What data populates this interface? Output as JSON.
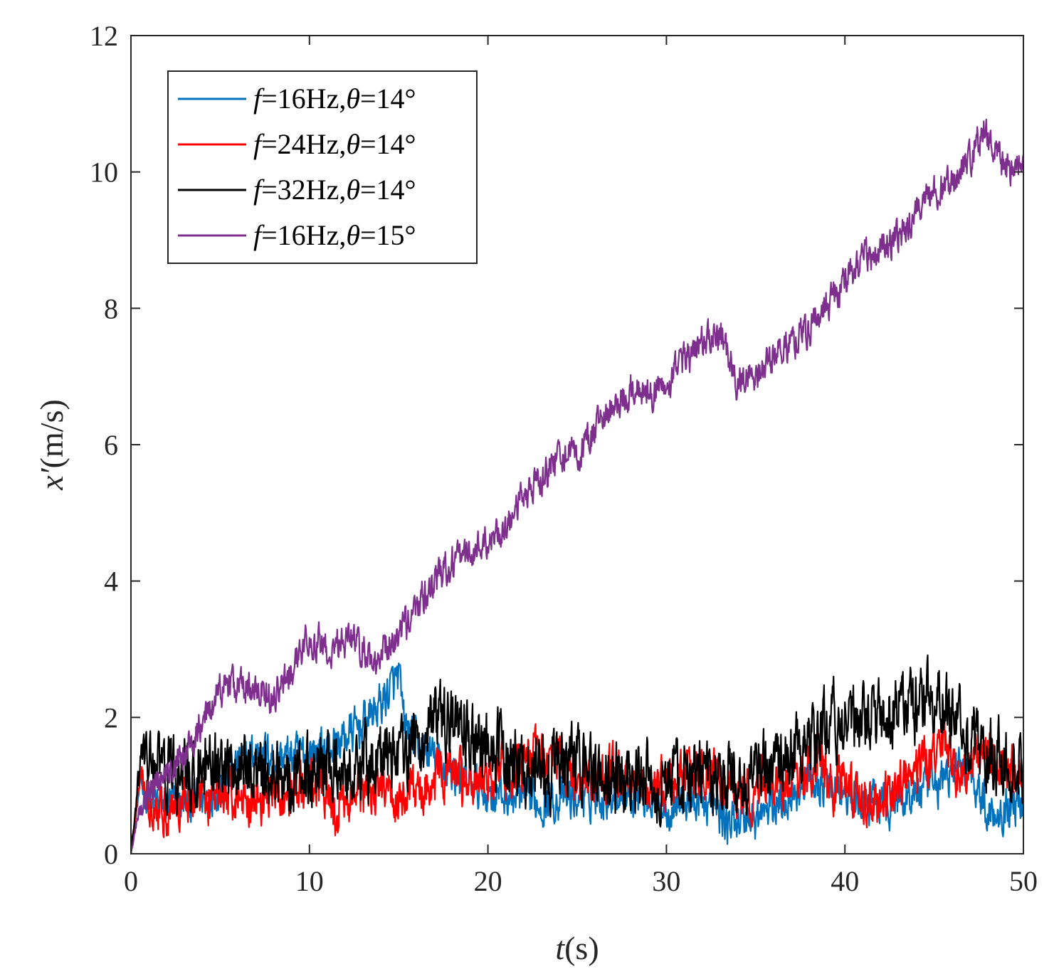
{
  "chart_data": {
    "type": "line",
    "xlabel": {
      "var": "t",
      "unit": "(s)"
    },
    "ylabel": {
      "var": "x′",
      "unit": "(m/s)"
    },
    "xlim": [
      0,
      50
    ],
    "ylim": [
      0,
      12
    ],
    "xticks": [
      "0",
      "10",
      "20",
      "30",
      "40",
      "50"
    ],
    "yticks": [
      "0",
      "2",
      "4",
      "6",
      "8",
      "10",
      "12"
    ],
    "grid": false,
    "legend_position": "top-left",
    "series": [
      {
        "name": "f=16Hz,θ=14°",
        "legend": {
          "f": "f",
          "freq": "=16Hz,",
          "theta": "θ",
          "angle": "=14°"
        },
        "color": "#0072BD",
        "noise": 0.33,
        "x": [
          0,
          0.5,
          1,
          2,
          3,
          4,
          5,
          6,
          7,
          8,
          9,
          10,
          11,
          12,
          13,
          14,
          14.5,
          15,
          15.3,
          16,
          17,
          18,
          19,
          20,
          21,
          22,
          23,
          24,
          25,
          26,
          27,
          28,
          29,
          30,
          31,
          32,
          33,
          33.5,
          34,
          35,
          36,
          37,
          38,
          39,
          40,
          41,
          42,
          43,
          44,
          45,
          46,
          47,
          48,
          49,
          50
        ],
        "y": [
          0,
          1.0,
          0.8,
          0.7,
          0.75,
          0.8,
          1.0,
          1.3,
          1.5,
          1.45,
          1.4,
          1.5,
          1.55,
          1.7,
          1.9,
          2.2,
          2.4,
          2.6,
          1.9,
          1.6,
          1.4,
          1.2,
          1.0,
          0.9,
          0.85,
          0.8,
          0.75,
          0.8,
          0.8,
          0.85,
          0.9,
          0.9,
          0.85,
          0.7,
          0.75,
          0.8,
          0.6,
          0.4,
          0.55,
          0.5,
          0.7,
          0.9,
          1.1,
          1.0,
          0.85,
          0.75,
          0.7,
          0.8,
          0.9,
          1.0,
          1.2,
          1.3,
          0.6,
          0.7,
          0.8
        ]
      },
      {
        "name": "f=24Hz,θ=14°",
        "legend": {
          "f": "f",
          "freq": "=24Hz,",
          "theta": "θ",
          "angle": "=14°"
        },
        "color": "#FF0000",
        "noise": 0.38,
        "x": [
          0,
          0.5,
          1,
          2,
          3,
          4,
          5,
          6,
          7,
          8,
          9,
          10,
          11,
          11.5,
          12,
          13,
          14,
          15,
          16,
          17,
          18,
          19,
          20,
          21,
          22,
          23,
          24,
          25,
          26,
          27,
          28,
          29,
          30,
          31,
          32,
          33,
          34,
          35,
          36,
          37,
          38,
          38.5,
          39,
          40,
          41,
          42,
          43,
          44,
          45,
          45.5,
          46,
          47,
          48,
          49,
          50
        ],
        "y": [
          0,
          1.1,
          0.8,
          0.7,
          0.8,
          0.85,
          0.9,
          0.85,
          0.8,
          0.85,
          0.9,
          0.95,
          0.85,
          0.5,
          0.8,
          0.85,
          0.9,
          0.8,
          0.9,
          1.1,
          1.2,
          1.0,
          1.1,
          1.2,
          1.3,
          1.5,
          1.4,
          1.0,
          1.1,
          1.2,
          1.1,
          1.0,
          1.0,
          1.1,
          1.2,
          1.1,
          0.9,
          0.9,
          1.0,
          1.1,
          1.2,
          1.5,
          1.0,
          1.1,
          0.7,
          0.7,
          1.0,
          1.2,
          1.5,
          1.8,
          1.2,
          1.3,
          1.5,
          1.3,
          1.2
        ]
      },
      {
        "name": "f=32Hz,θ=14°",
        "legend": {
          "f": "f",
          "freq": "=32Hz,",
          "theta": "θ",
          "angle": "=14°"
        },
        "color": "#000000",
        "noise": 0.55,
        "x": [
          0,
          0.6,
          1,
          2,
          3,
          4,
          5,
          6,
          7,
          8,
          9,
          10,
          11,
          12,
          13,
          14,
          15,
          16,
          17,
          18,
          19,
          20,
          21,
          22,
          23,
          24,
          25,
          26,
          27,
          28,
          29,
          30,
          31,
          32,
          33,
          34,
          35,
          36,
          37,
          38,
          39,
          40,
          41,
          42,
          43,
          44,
          45,
          46,
          47,
          48,
          49,
          50
        ],
        "y": [
          0,
          1.5,
          1.3,
          1.2,
          1.1,
          1.15,
          1.2,
          1.3,
          1.25,
          1.2,
          1.15,
          1.2,
          1.25,
          1.3,
          1.35,
          1.4,
          1.5,
          1.6,
          1.9,
          1.85,
          1.7,
          1.6,
          1.4,
          1.3,
          1.2,
          1.25,
          1.3,
          1.2,
          1.15,
          1.1,
          1.05,
          1.0,
          1.05,
          1.1,
          1.05,
          1.1,
          1.2,
          1.3,
          1.5,
          1.7,
          2.0,
          1.95,
          1.9,
          2.0,
          2.1,
          2.2,
          2.3,
          2.0,
          1.7,
          1.5,
          1.3,
          1.2
        ]
      },
      {
        "name": "f=16Hz,θ=15°",
        "legend": {
          "f": "f",
          "freq": "=16Hz,",
          "theta": "θ",
          "angle": "=15°"
        },
        "color": "#7E2F8E",
        "noise": 0.26,
        "x": [
          0,
          0.4,
          1,
          2,
          3,
          4,
          5,
          5.5,
          6,
          7,
          8,
          9,
          10,
          11,
          12,
          13,
          13.5,
          14,
          15,
          16,
          17,
          18,
          19,
          20,
          21,
          22,
          23,
          24,
          25,
          26,
          27,
          28,
          29,
          30,
          31,
          32,
          33,
          33.5,
          34,
          35,
          36,
          37,
          38,
          39,
          40,
          41,
          42,
          43,
          44,
          45,
          46,
          47,
          47.8,
          48.5,
          49,
          50
        ],
        "y": [
          0,
          0.6,
          0.9,
          1.2,
          1.5,
          1.9,
          2.4,
          2.5,
          2.45,
          2.4,
          2.3,
          2.7,
          3.2,
          3.0,
          3.15,
          3.05,
          2.8,
          3.0,
          3.2,
          3.6,
          4.0,
          4.3,
          4.4,
          4.6,
          4.8,
          5.2,
          5.5,
          5.9,
          5.8,
          6.2,
          6.6,
          6.8,
          6.7,
          6.9,
          7.2,
          7.5,
          7.6,
          7.3,
          6.9,
          7.0,
          7.3,
          7.5,
          7.7,
          8.1,
          8.4,
          8.7,
          8.9,
          9.1,
          9.4,
          9.7,
          9.9,
          10.2,
          10.6,
          10.3,
          10.0,
          10.2
        ]
      }
    ]
  }
}
